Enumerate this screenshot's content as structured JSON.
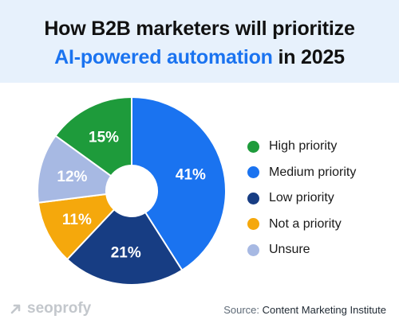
{
  "header": {
    "title_line1": "How B2B marketers will prioritize",
    "title_line2_accent": "AI-powered automation",
    "title_line2_rest": " in 2025"
  },
  "chart_data": {
    "type": "pie",
    "donut": true,
    "categories": [
      "High priority",
      "Medium priority",
      "Low priority",
      "Not a priority",
      "Unsure"
    ],
    "values": [
      15,
      41,
      21,
      11,
      12
    ],
    "series": [
      {
        "name": "High priority",
        "value": 15,
        "label": "15%",
        "color": "#1e9b3b"
      },
      {
        "name": "Medium priority",
        "value": 41,
        "label": "41%",
        "color": "#1a73f0"
      },
      {
        "name": "Low priority",
        "value": 21,
        "label": "21%",
        "color": "#173d83"
      },
      {
        "name": "Not a priority",
        "value": 11,
        "label": "11%",
        "color": "#f5a80c"
      },
      {
        "name": "Unsure",
        "value": 12,
        "label": "12%",
        "color": "#a7b9e3"
      }
    ],
    "legend_position": "right"
  },
  "footer": {
    "logo_text": "seoprofy",
    "source_prefix": "Source: ",
    "source_name": "Content Marketing Institute"
  },
  "colors": {
    "header_bg": "#e7f1fc",
    "accent": "#1a73f0"
  }
}
